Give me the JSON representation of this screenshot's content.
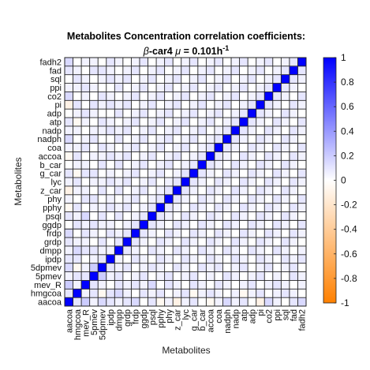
{
  "chart_data": {
    "type": "heatmap",
    "title": "Metabolites Concentration correlation coefficients:",
    "subtitle": {
      "greek1": "β",
      "part1": "-car4 ",
      "greek2": "μ",
      "part2": " = 0.101h",
      "sup": "-1"
    },
    "xlabel": "Metabolites",
    "ylabel": "Metabolites",
    "labels": [
      "aacoa",
      "hmgcoa",
      "mev_R",
      "5pmev",
      "5dpmev",
      "ipdp",
      "dmpp",
      "grdp",
      "frdp",
      "ggdp",
      "psql",
      "pphy",
      "phy",
      "z_car",
      "lyc",
      "g_car",
      "b_car",
      "accoa",
      "coa",
      "nadph",
      "nadp",
      "atp",
      "adp",
      "pi",
      "co2",
      "ppi",
      "sql",
      "fad",
      "fadh2"
    ],
    "colorbar": {
      "ticks": [
        1,
        0.8,
        0.6,
        0.4,
        0.2,
        0,
        -0.2,
        -0.4,
        -0.6,
        -0.8,
        -1
      ],
      "tick_labels": [
        "1",
        "0.8",
        "0.6",
        "0.4",
        "0.2",
        "0",
        "-0.2",
        "-0.4",
        "-0.6",
        "-0.8",
        "-1"
      ],
      "range": [
        -1,
        1
      ]
    },
    "colors": {
      "positive": "#0000ff",
      "negative": "#ff8000",
      "zero": "#ffffff",
      "grid": "#222222"
    },
    "grid": true,
    "matrix": [
      [
        1.0,
        0.1,
        0.2,
        0.05,
        0.15,
        0.1,
        0.05,
        0.1,
        0.15,
        0.0,
        0.1,
        -0.05,
        0.05,
        -0.1,
        0.05,
        0.1,
        0.0,
        -0.05,
        0.05,
        0.15,
        0.05,
        0.1,
        0.0,
        -0.1,
        0.15,
        0.05,
        0.0,
        0.1,
        0.15
      ],
      [
        0.1,
        1.0,
        0.05,
        0.1,
        -0.05,
        0.1,
        0.15,
        0.05,
        0.0,
        0.1,
        0.05,
        0.1,
        0.0,
        0.05,
        0.1,
        -0.05,
        0.05,
        0.1,
        0.05,
        0.0,
        0.05,
        -0.05,
        0.05,
        0.1,
        0.0,
        0.05,
        0.1,
        0.05,
        0.0
      ],
      [
        0.2,
        0.05,
        1.0,
        0.1,
        0.05,
        0.0,
        0.1,
        0.05,
        0.1,
        0.05,
        0.15,
        0.0,
        0.1,
        0.05,
        0.0,
        0.1,
        0.05,
        0.0,
        0.1,
        0.05,
        0.0,
        0.05,
        0.1,
        0.0,
        0.05,
        0.1,
        0.05,
        0.0,
        0.05
      ],
      [
        0.05,
        0.1,
        0.1,
        1.0,
        0.2,
        0.05,
        0.1,
        0.0,
        0.05,
        0.1,
        0.0,
        0.05,
        0.1,
        0.0,
        0.05,
        0.1,
        0.0,
        0.05,
        0.0,
        0.1,
        0.05,
        0.0,
        0.05,
        0.1,
        0.0,
        0.05,
        0.0,
        0.1,
        0.05
      ],
      [
        0.15,
        -0.05,
        0.05,
        0.2,
        1.0,
        0.1,
        0.05,
        0.1,
        0.0,
        0.05,
        0.1,
        0.05,
        0.0,
        0.1,
        0.05,
        0.0,
        0.1,
        0.05,
        0.1,
        0.0,
        0.05,
        0.1,
        0.0,
        0.05,
        0.1,
        0.0,
        0.05,
        0.1,
        0.0
      ],
      [
        0.1,
        0.1,
        0.0,
        0.05,
        0.1,
        1.0,
        0.05,
        0.0,
        0.1,
        0.05,
        0.0,
        0.1,
        0.05,
        0.0,
        0.1,
        0.05,
        0.0,
        0.1,
        0.05,
        0.0,
        0.1,
        0.05,
        0.0,
        0.1,
        0.05,
        0.0,
        0.1,
        0.05,
        0.1
      ],
      [
        0.05,
        0.15,
        0.1,
        0.1,
        0.05,
        0.05,
        1.0,
        0.1,
        0.05,
        0.0,
        0.1,
        0.05,
        0.0,
        0.1,
        0.05,
        0.0,
        0.1,
        0.05,
        0.0,
        0.1,
        0.05,
        0.0,
        0.1,
        0.05,
        0.0,
        0.1,
        0.05,
        0.0,
        0.05
      ],
      [
        0.1,
        0.05,
        0.05,
        0.0,
        0.1,
        0.0,
        0.1,
        1.0,
        0.1,
        0.05,
        0.0,
        0.1,
        0.05,
        0.0,
        0.1,
        0.05,
        0.0,
        0.1,
        0.05,
        0.0,
        0.1,
        0.05,
        0.0,
        0.1,
        0.05,
        0.0,
        0.1,
        0.05,
        0.0
      ],
      [
        0.15,
        0.0,
        0.1,
        0.05,
        0.0,
        0.1,
        0.05,
        0.1,
        1.0,
        0.1,
        0.05,
        0.0,
        0.1,
        0.05,
        0.0,
        0.1,
        0.05,
        0.0,
        0.1,
        0.05,
        0.0,
        0.1,
        0.05,
        0.0,
        0.1,
        0.05,
        0.0,
        0.1,
        0.05
      ],
      [
        0.0,
        0.1,
        0.05,
        0.1,
        0.05,
        0.05,
        0.0,
        0.05,
        0.1,
        1.0,
        0.1,
        0.05,
        0.0,
        0.1,
        0.05,
        0.0,
        0.1,
        0.05,
        0.0,
        0.1,
        0.05,
        0.0,
        0.1,
        0.05,
        0.0,
        0.1,
        0.05,
        0.0,
        0.1
      ],
      [
        0.1,
        0.05,
        0.15,
        0.0,
        0.1,
        0.0,
        0.1,
        0.0,
        0.05,
        0.1,
        1.0,
        0.1,
        0.05,
        0.0,
        0.1,
        0.05,
        0.0,
        0.1,
        0.05,
        0.0,
        0.1,
        0.05,
        0.0,
        0.1,
        0.05,
        0.0,
        0.1,
        0.05,
        0.0
      ],
      [
        -0.05,
        0.1,
        0.0,
        0.05,
        0.05,
        0.1,
        0.05,
        0.1,
        0.0,
        0.05,
        0.1,
        1.0,
        0.1,
        0.05,
        0.0,
        0.1,
        0.05,
        0.0,
        0.1,
        0.05,
        0.0,
        0.1,
        0.05,
        0.0,
        0.1,
        0.05,
        0.0,
        0.1,
        0.05
      ],
      [
        0.05,
        0.0,
        0.1,
        0.1,
        0.0,
        0.05,
        0.0,
        0.05,
        0.1,
        0.0,
        0.05,
        0.1,
        1.0,
        0.1,
        0.05,
        0.0,
        0.1,
        0.05,
        0.0,
        0.1,
        0.05,
        0.0,
        0.1,
        0.05,
        0.0,
        0.1,
        0.05,
        0.0,
        0.1
      ],
      [
        -0.1,
        0.05,
        0.05,
        0.0,
        0.1,
        0.0,
        0.1,
        0.0,
        0.05,
        0.1,
        0.0,
        0.05,
        0.1,
        1.0,
        0.1,
        0.05,
        0.0,
        0.1,
        0.05,
        0.0,
        0.1,
        0.05,
        0.0,
        0.1,
        0.05,
        0.0,
        0.1,
        0.05,
        0.0
      ],
      [
        0.05,
        0.1,
        0.0,
        0.05,
        0.05,
        0.1,
        0.05,
        0.1,
        0.0,
        0.05,
        0.1,
        0.0,
        0.05,
        0.1,
        1.0,
        0.1,
        0.05,
        0.0,
        0.1,
        0.05,
        0.0,
        0.1,
        0.05,
        0.0,
        0.1,
        0.05,
        0.0,
        0.1,
        0.05
      ],
      [
        0.1,
        -0.05,
        0.1,
        0.1,
        0.0,
        0.05,
        0.0,
        0.05,
        0.1,
        0.0,
        0.05,
        0.1,
        0.0,
        0.05,
        0.1,
        1.0,
        0.1,
        0.05,
        0.0,
        0.1,
        0.05,
        0.0,
        0.1,
        0.05,
        0.0,
        0.1,
        0.05,
        0.0,
        0.1
      ],
      [
        0.0,
        0.05,
        0.05,
        0.0,
        0.1,
        0.0,
        0.1,
        0.0,
        0.05,
        0.1,
        0.0,
        0.05,
        0.1,
        0.0,
        0.05,
        0.1,
        1.0,
        0.1,
        0.05,
        0.0,
        0.1,
        0.05,
        0.0,
        0.1,
        0.05,
        0.0,
        0.1,
        0.05,
        0.0
      ],
      [
        -0.05,
        0.1,
        0.0,
        0.05,
        0.05,
        0.1,
        0.05,
        0.1,
        0.0,
        0.05,
        0.1,
        0.0,
        0.05,
        0.1,
        0.0,
        0.05,
        0.1,
        1.0,
        0.1,
        0.05,
        0.0,
        0.1,
        0.05,
        0.0,
        0.1,
        0.05,
        0.0,
        0.1,
        0.05
      ],
      [
        0.05,
        0.05,
        0.1,
        0.0,
        0.1,
        0.05,
        0.0,
        0.05,
        0.1,
        0.0,
        0.05,
        0.1,
        0.0,
        0.05,
        0.1,
        0.0,
        0.05,
        0.1,
        1.0,
        0.1,
        0.05,
        0.0,
        0.1,
        0.05,
        0.0,
        0.1,
        0.05,
        0.0,
        0.1
      ],
      [
        0.15,
        0.0,
        0.05,
        0.1,
        0.0,
        0.0,
        0.1,
        0.0,
        0.05,
        0.1,
        0.0,
        0.05,
        0.1,
        0.0,
        0.05,
        0.1,
        0.0,
        0.05,
        0.1,
        1.0,
        0.1,
        0.05,
        0.0,
        0.1,
        0.05,
        0.0,
        0.1,
        0.05,
        0.0
      ],
      [
        0.05,
        0.05,
        0.0,
        0.05,
        0.05,
        0.1,
        0.05,
        0.1,
        0.0,
        0.05,
        0.1,
        0.0,
        0.05,
        0.1,
        0.0,
        0.05,
        0.1,
        0.0,
        0.05,
        0.1,
        1.0,
        0.1,
        0.05,
        0.0,
        0.1,
        0.05,
        0.0,
        0.1,
        0.05
      ],
      [
        0.1,
        -0.05,
        0.05,
        0.0,
        0.1,
        0.05,
        0.0,
        0.05,
        0.1,
        0.0,
        0.05,
        0.1,
        0.0,
        0.05,
        0.1,
        0.0,
        0.05,
        0.1,
        0.0,
        0.05,
        0.1,
        1.0,
        0.1,
        0.05,
        0.0,
        0.1,
        0.05,
        0.0,
        0.1
      ],
      [
        0.0,
        0.05,
        0.1,
        0.05,
        0.0,
        0.0,
        0.1,
        0.0,
        0.05,
        0.1,
        0.0,
        0.05,
        0.1,
        0.0,
        0.05,
        0.1,
        0.0,
        0.05,
        0.1,
        0.0,
        0.05,
        0.1,
        1.0,
        0.1,
        0.05,
        0.0,
        0.1,
        0.05,
        0.0
      ],
      [
        -0.1,
        0.1,
        0.0,
        0.1,
        0.05,
        0.1,
        0.05,
        0.1,
        0.0,
        0.05,
        0.1,
        0.0,
        0.05,
        0.1,
        0.0,
        0.05,
        0.1,
        0.0,
        0.05,
        0.1,
        0.0,
        0.05,
        0.1,
        1.0,
        0.1,
        0.05,
        0.0,
        0.1,
        0.05
      ],
      [
        0.15,
        0.0,
        0.05,
        0.0,
        0.1,
        0.05,
        0.0,
        0.05,
        0.1,
        0.0,
        0.05,
        0.1,
        0.0,
        0.05,
        0.1,
        0.0,
        0.05,
        0.1,
        0.0,
        0.05,
        0.1,
        0.0,
        0.05,
        0.1,
        1.0,
        0.1,
        0.05,
        0.0,
        0.1
      ],
      [
        0.05,
        0.05,
        0.1,
        0.05,
        0.0,
        0.0,
        0.1,
        0.0,
        0.05,
        0.1,
        0.0,
        0.05,
        0.1,
        0.0,
        0.05,
        0.1,
        0.0,
        0.05,
        0.1,
        0.0,
        0.05,
        0.1,
        0.0,
        0.05,
        0.1,
        1.0,
        0.1,
        0.05,
        0.0
      ],
      [
        0.0,
        0.1,
        0.05,
        0.0,
        0.05,
        0.1,
        0.05,
        0.1,
        0.0,
        0.05,
        0.1,
        0.0,
        0.05,
        0.1,
        0.0,
        0.05,
        0.1,
        0.0,
        0.05,
        0.1,
        0.0,
        0.05,
        0.1,
        0.0,
        0.05,
        0.1,
        1.0,
        0.1,
        0.05
      ],
      [
        0.1,
        0.05,
        0.0,
        0.1,
        0.1,
        0.05,
        0.0,
        0.05,
        0.1,
        0.0,
        0.05,
        0.1,
        0.0,
        0.05,
        0.1,
        0.0,
        0.05,
        0.1,
        0.0,
        0.05,
        0.1,
        0.0,
        0.05,
        0.1,
        0.0,
        0.05,
        0.1,
        1.0,
        0.1
      ],
      [
        0.15,
        0.0,
        0.05,
        0.05,
        0.0,
        0.1,
        0.05,
        0.0,
        0.05,
        0.1,
        0.0,
        0.05,
        0.1,
        0.0,
        0.05,
        0.1,
        0.0,
        0.05,
        0.1,
        0.0,
        0.05,
        0.1,
        0.0,
        0.05,
        0.1,
        0.0,
        0.05,
        0.1,
        1.0
      ]
    ]
  }
}
